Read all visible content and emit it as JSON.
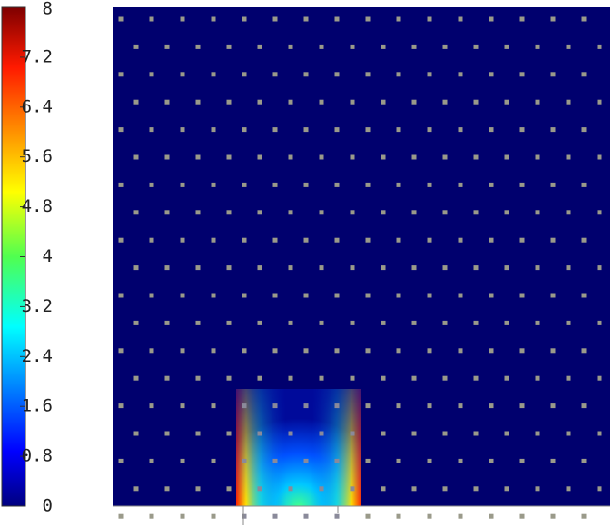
{
  "chart_data": {
    "type": "heatmap",
    "colormap": "jet",
    "clim": [
      0,
      8
    ],
    "cticks": [
      0,
      0.8,
      1.6,
      2.4,
      3.2,
      4,
      4.8,
      5.6,
      6.4,
      7.2,
      8
    ]
  }
}
